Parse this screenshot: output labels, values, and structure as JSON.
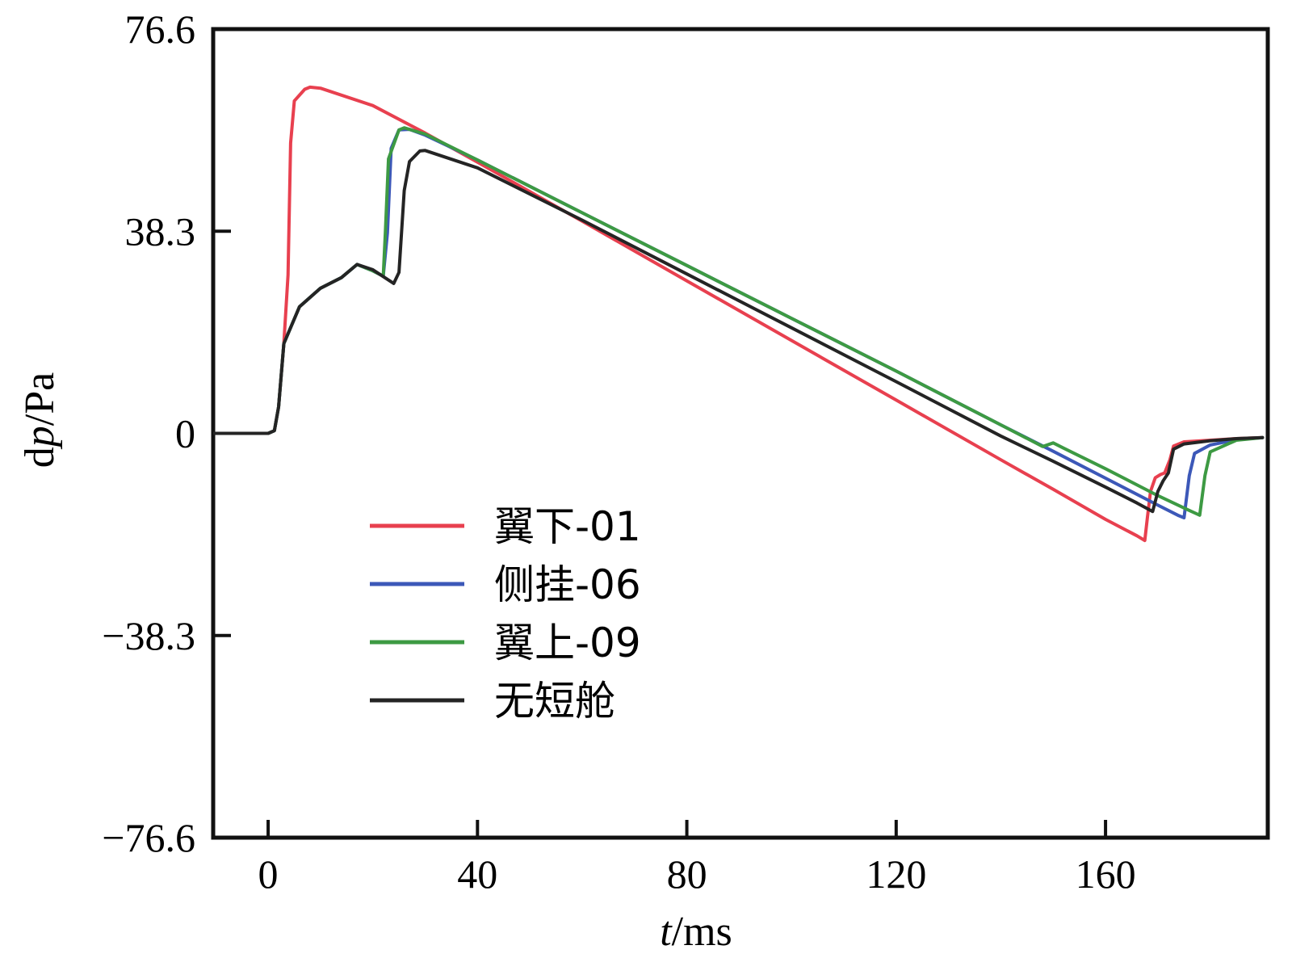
{
  "chart_data": {
    "type": "line",
    "title": "",
    "xlabel_italic": "t",
    "xlabel_rest": "/ms",
    "ylabel_pre": "d",
    "ylabel_italic": "p",
    "ylabel_rest": "/Pa",
    "xlim": [
      -10.5,
      191
    ],
    "ylim": [
      -76.6,
      76.6
    ],
    "xticks": [
      0,
      40,
      80,
      120,
      160
    ],
    "xtick_labels": [
      "0",
      "40",
      "80",
      "120",
      "160"
    ],
    "yticks": [
      76.6,
      38.3,
      0,
      -38.3,
      -76.6
    ],
    "ytick_labels": [
      "76.6",
      "38.3",
      "0",
      "−38.3",
      "−76.6"
    ],
    "legend_position": "lower-left",
    "series": [
      {
        "name": "翼下-01",
        "color": "#e8404f",
        "points": [
          [
            -10.5,
            0
          ],
          [
            0,
            0
          ],
          [
            1.2,
            0.5
          ],
          [
            2,
            5
          ],
          [
            3,
            17
          ],
          [
            3.8,
            30
          ],
          [
            4.3,
            55
          ],
          [
            5,
            63
          ],
          [
            7,
            65.2
          ],
          [
            8,
            65.6
          ],
          [
            10,
            65.4
          ],
          [
            20,
            62.1
          ],
          [
            30,
            56.9
          ],
          [
            40,
            51.4
          ],
          [
            60,
            40.2
          ],
          [
            80,
            28.9
          ],
          [
            100,
            17.6
          ],
          [
            120,
            6.3
          ],
          [
            140,
            -5
          ],
          [
            150,
            -10.6
          ],
          [
            160,
            -16.3
          ],
          [
            166,
            -19.4
          ],
          [
            167.5,
            -20.3
          ],
          [
            168,
            -16
          ],
          [
            168.6,
            -11
          ],
          [
            169.5,
            -8.4
          ],
          [
            170.5,
            -7.8
          ],
          [
            171.3,
            -7.5
          ],
          [
            172.3,
            -5
          ],
          [
            173,
            -2.4
          ],
          [
            175,
            -1.6
          ],
          [
            180,
            -1.3
          ],
          [
            185,
            -1
          ],
          [
            190,
            -0.8
          ]
        ]
      },
      {
        "name": "侧挂-06",
        "color": "#3c58b8",
        "points": [
          [
            -10.5,
            0
          ],
          [
            0,
            0
          ],
          [
            1.2,
            0.5
          ],
          [
            2,
            5
          ],
          [
            3,
            17
          ],
          [
            6,
            24
          ],
          [
            10,
            27.5
          ],
          [
            14,
            29.5
          ],
          [
            17,
            32
          ],
          [
            20,
            30.8
          ],
          [
            22,
            29.8
          ],
          [
            22.8,
            38
          ],
          [
            23.5,
            54
          ],
          [
            25,
            57.5
          ],
          [
            27,
            57.6
          ],
          [
            30,
            56.5
          ],
          [
            40,
            51.8
          ],
          [
            60,
            41.8
          ],
          [
            80,
            31.8
          ],
          [
            100,
            21.8
          ],
          [
            120,
            11.8
          ],
          [
            140,
            1.6
          ],
          [
            150,
            -3.4
          ],
          [
            160,
            -8.5
          ],
          [
            170,
            -13.6
          ],
          [
            174,
            -15.6
          ],
          [
            175,
            -16
          ],
          [
            176,
            -8
          ],
          [
            177,
            -3.8
          ],
          [
            180,
            -2.2
          ],
          [
            185,
            -1.2
          ],
          [
            190,
            -0.8
          ]
        ]
      },
      {
        "name": "翼上-09",
        "color": "#3d9a43",
        "points": [
          [
            -10.5,
            0
          ],
          [
            0,
            0
          ],
          [
            1.2,
            0.5
          ],
          [
            2,
            5
          ],
          [
            3,
            17
          ],
          [
            6,
            24
          ],
          [
            10,
            27.5
          ],
          [
            14,
            29.5
          ],
          [
            17,
            32
          ],
          [
            20,
            30.8
          ],
          [
            22,
            29.8
          ],
          [
            22.4,
            38
          ],
          [
            23,
            52
          ],
          [
            25,
            57.5
          ],
          [
            26,
            57.9
          ],
          [
            30,
            56.7
          ],
          [
            40,
            51.8
          ],
          [
            60,
            41.8
          ],
          [
            80,
            31.8
          ],
          [
            100,
            21.8
          ],
          [
            120,
            11.8
          ],
          [
            140,
            1.6
          ],
          [
            148,
            -2.5
          ],
          [
            150,
            -1.8
          ],
          [
            152,
            -2.8
          ],
          [
            160,
            -6.7
          ],
          [
            170,
            -11.8
          ],
          [
            176,
            -14.6
          ],
          [
            178,
            -15.5
          ],
          [
            179,
            -8
          ],
          [
            180,
            -3.5
          ],
          [
            185,
            -1.3
          ],
          [
            190,
            -0.8
          ]
        ]
      },
      {
        "name": "无短舱",
        "color": "#242424",
        "points": [
          [
            -10.5,
            0
          ],
          [
            0,
            0
          ],
          [
            1.2,
            0.5
          ],
          [
            2,
            5
          ],
          [
            3,
            17
          ],
          [
            6,
            24
          ],
          [
            10,
            27.5
          ],
          [
            14,
            29.5
          ],
          [
            17,
            32
          ],
          [
            20,
            31
          ],
          [
            24,
            28.4
          ],
          [
            25,
            30.5
          ],
          [
            26,
            46
          ],
          [
            27,
            51.5
          ],
          [
            29,
            53.5
          ],
          [
            30,
            53.6
          ],
          [
            40,
            50.3
          ],
          [
            60,
            40.4
          ],
          [
            80,
            30.2
          ],
          [
            100,
            20
          ],
          [
            120,
            9.8
          ],
          [
            140,
            -0.5
          ],
          [
            150,
            -5.3
          ],
          [
            160,
            -10.2
          ],
          [
            166,
            -13.2
          ],
          [
            169,
            -14.8
          ],
          [
            170,
            -11
          ],
          [
            171,
            -9
          ],
          [
            172,
            -7.5
          ],
          [
            173,
            -3
          ],
          [
            175,
            -2
          ],
          [
            180,
            -1.4
          ],
          [
            185,
            -1
          ],
          [
            190,
            -0.8
          ]
        ]
      }
    ]
  }
}
